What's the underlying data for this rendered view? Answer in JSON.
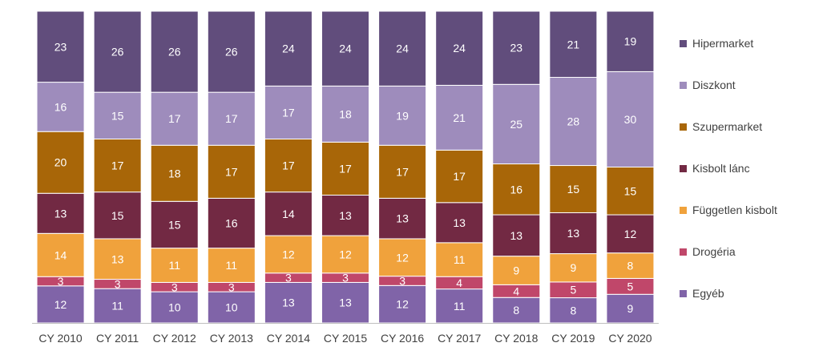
{
  "chart_data": {
    "type": "bar",
    "stacked": true,
    "normalized_percent": true,
    "categories": [
      "CY 2010",
      "CY 2011",
      "CY 2012",
      "CY 2013",
      "CY 2014",
      "CY 2015",
      "CY 2016",
      "CY 2017",
      "CY 2018",
      "CY 2019",
      "CY 2020"
    ],
    "series": [
      {
        "name": "Egyéb",
        "color": "#8064a8",
        "values": [
          12,
          11,
          10,
          10,
          13,
          13,
          12,
          11,
          8,
          8,
          9
        ]
      },
      {
        "name": "Drogéria",
        "color": "#c0476a",
        "values": [
          3,
          3,
          3,
          3,
          3,
          3,
          3,
          4,
          4,
          5,
          5
        ]
      },
      {
        "name": "Független kisbolt",
        "color": "#f0a23c",
        "values": [
          14,
          13,
          11,
          11,
          12,
          12,
          12,
          11,
          9,
          9,
          8
        ]
      },
      {
        "name": "Kisbolt lánc",
        "color": "#722943",
        "values": [
          13,
          15,
          15,
          16,
          14,
          13,
          13,
          13,
          13,
          13,
          12
        ]
      },
      {
        "name": "Szupermarket",
        "color": "#a86608",
        "values": [
          20,
          17,
          18,
          17,
          17,
          17,
          17,
          17,
          16,
          15,
          15
        ]
      },
      {
        "name": "Diszkont",
        "color": "#9e8cbc",
        "values": [
          16,
          15,
          17,
          17,
          17,
          18,
          19,
          21,
          25,
          28,
          30
        ]
      },
      {
        "name": "Hipermarket",
        "color": "#614d7c",
        "values": [
          23,
          26,
          26,
          26,
          24,
          24,
          24,
          24,
          23,
          21,
          19
        ]
      }
    ],
    "legend_order": [
      "Hipermarket",
      "Diszkont",
      "Szupermarket",
      "Kisbolt lánc",
      "Független kisbolt",
      "Drogéria",
      "Egyéb"
    ],
    "legend_position": "right",
    "grid": false,
    "ylim": [
      0,
      100
    ],
    "data_labels": true
  }
}
